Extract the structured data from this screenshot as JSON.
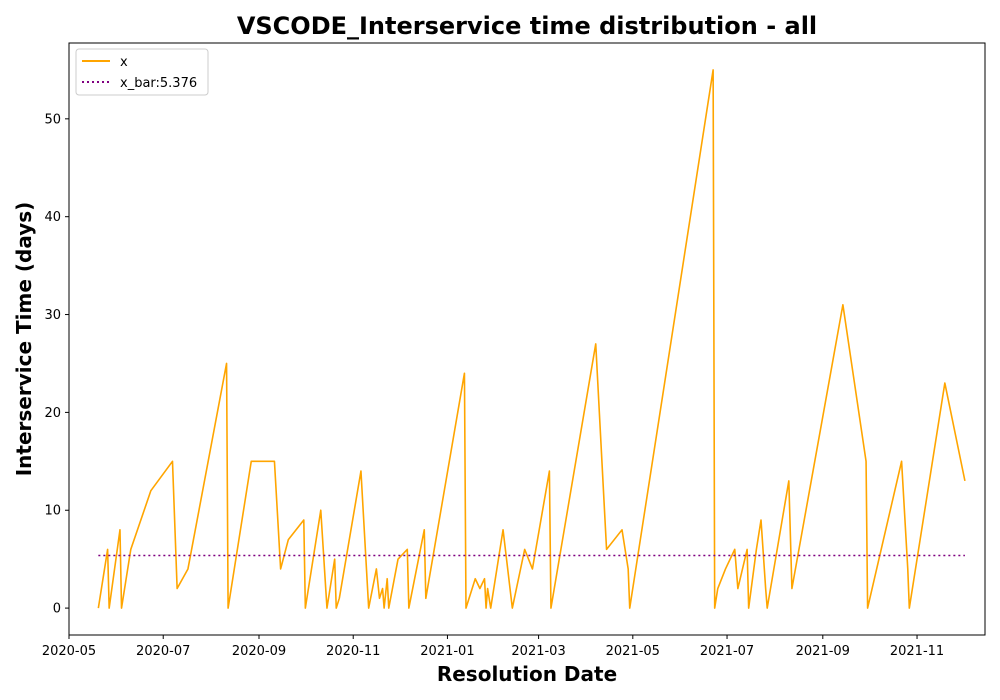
{
  "chart_data": {
    "type": "line",
    "title": "VSCODE_Interservice time distribution - all",
    "xlabel": "Resolution Date",
    "ylabel": "Interservice Time (days)",
    "x_ticks": [
      "2020-05",
      "2020-07",
      "2020-09",
      "2020-11",
      "2021-01",
      "2021-03",
      "2021-05",
      "2021-07",
      "2021-09",
      "2021-11"
    ],
    "y_ticks": [
      "0",
      "10",
      "20",
      "30",
      "40",
      "50"
    ],
    "xlim": [
      "2020-05-01",
      "2021-12-15"
    ],
    "ylim": [
      -2.75,
      57.75
    ],
    "grid": false,
    "legend_placement": "upper-left",
    "series": [
      {
        "name": "x",
        "color": "#ffa500",
        "style": "solid",
        "points": [
          [
            "2020-05-20",
            0
          ],
          [
            "2020-05-26",
            6
          ],
          [
            "2020-05-27",
            0
          ],
          [
            "2020-06-03",
            8
          ],
          [
            "2020-06-04",
            0
          ],
          [
            "2020-06-10",
            6
          ],
          [
            "2020-06-23",
            12
          ],
          [
            "2020-07-07",
            15
          ],
          [
            "2020-07-10",
            2
          ],
          [
            "2020-07-17",
            4
          ],
          [
            "2020-08-11",
            25
          ],
          [
            "2020-08-12",
            0
          ],
          [
            "2020-08-27",
            15
          ],
          [
            "2020-09-11",
            15
          ],
          [
            "2020-09-15",
            4
          ],
          [
            "2020-09-20",
            7
          ],
          [
            "2020-09-30",
            9
          ],
          [
            "2020-10-01",
            0
          ],
          [
            "2020-10-11",
            10
          ],
          [
            "2020-10-15",
            0
          ],
          [
            "2020-10-20",
            5
          ],
          [
            "2020-10-21",
            0
          ],
          [
            "2020-10-23",
            1
          ],
          [
            "2020-11-06",
            14
          ],
          [
            "2020-11-11",
            0
          ],
          [
            "2020-11-16",
            4
          ],
          [
            "2020-11-18",
            1
          ],
          [
            "2020-11-20",
            2
          ],
          [
            "2020-11-21",
            0
          ],
          [
            "2020-11-23",
            3
          ],
          [
            "2020-11-24",
            0
          ],
          [
            "2020-11-30",
            5
          ],
          [
            "2020-12-06",
            6
          ],
          [
            "2020-12-07",
            0
          ],
          [
            "2020-12-17",
            8
          ],
          [
            "2020-12-18",
            1
          ],
          [
            "2021-01-12",
            24
          ],
          [
            "2021-01-13",
            0
          ],
          [
            "2021-01-19",
            3
          ],
          [
            "2021-01-22",
            2
          ],
          [
            "2021-01-25",
            3
          ],
          [
            "2021-01-26",
            0
          ],
          [
            "2021-01-27",
            2
          ],
          [
            "2021-01-29",
            0
          ],
          [
            "2021-02-06",
            8
          ],
          [
            "2021-02-12",
            0
          ],
          [
            "2021-02-20",
            6
          ],
          [
            "2021-02-25",
            4
          ],
          [
            "2021-03-08",
            14
          ],
          [
            "2021-03-09",
            0
          ],
          [
            "2021-04-07",
            27
          ],
          [
            "2021-04-14",
            6
          ],
          [
            "2021-04-24",
            8
          ],
          [
            "2021-04-28",
            4
          ],
          [
            "2021-04-29",
            0
          ],
          [
            "2021-06-22",
            55
          ],
          [
            "2021-06-23",
            0
          ],
          [
            "2021-06-25",
            2
          ],
          [
            "2021-06-30",
            4
          ],
          [
            "2021-07-06",
            6
          ],
          [
            "2021-07-08",
            2
          ],
          [
            "2021-07-14",
            6
          ],
          [
            "2021-07-15",
            0
          ],
          [
            "2021-07-20",
            6
          ],
          [
            "2021-07-23",
            9
          ],
          [
            "2021-07-26",
            2
          ],
          [
            "2021-07-27",
            0
          ],
          [
            "2021-08-10",
            13
          ],
          [
            "2021-08-12",
            2
          ],
          [
            "2021-09-14",
            31
          ],
          [
            "2021-09-29",
            15
          ],
          [
            "2021-09-30",
            0
          ],
          [
            "2021-10-22",
            15
          ],
          [
            "2021-10-26",
            4
          ],
          [
            "2021-10-27",
            0
          ],
          [
            "2021-11-19",
            23
          ],
          [
            "2021-12-02",
            13
          ]
        ]
      },
      {
        "name": "x_bar:5.376",
        "color": "#800080",
        "style": "dotted",
        "points": [
          [
            "2020-05-20",
            5.376
          ],
          [
            "2021-12-02",
            5.376
          ]
        ]
      }
    ]
  }
}
